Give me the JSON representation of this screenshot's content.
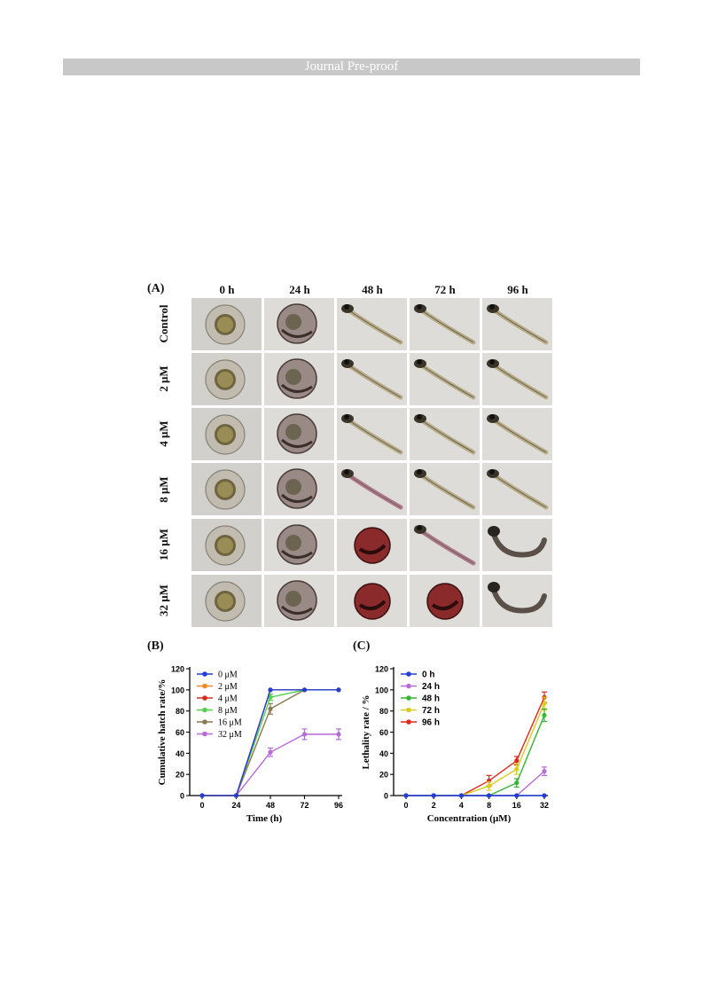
{
  "header": {
    "banner": "Journal Pre-proof"
  },
  "figure": {
    "panel_a": {
      "label": "(A)",
      "columns": [
        "0 h",
        "24 h",
        "48 h",
        "72 h",
        "96 h"
      ],
      "rows": [
        "Control",
        "2 μM",
        "4 μM",
        "8 μM",
        "16 μM",
        "32 μM"
      ]
    },
    "panel_b": {
      "label": "(B)"
    },
    "panel_c": {
      "label": "(C)"
    }
  },
  "chart_data": [
    {
      "type": "line",
      "panel": "B",
      "x": [
        0,
        24,
        48,
        72,
        96
      ],
      "xlabel": "Time (h)",
      "ylabel": "Cumulative hatch rate/%",
      "ylim": [
        0,
        120
      ],
      "yticks": [
        0,
        20,
        40,
        60,
        80,
        100,
        120
      ],
      "legend_position": "top-left",
      "series": [
        {
          "name": "0 μM",
          "color": "#1f3fd6",
          "values": [
            0,
            0,
            100,
            100,
            100
          ],
          "err": [
            0,
            0,
            0,
            0,
            0
          ]
        },
        {
          "name": "2 μM",
          "color": "#f08a24",
          "values": [
            0,
            0,
            100,
            100,
            100
          ],
          "err": [
            0,
            0,
            0,
            0,
            0
          ]
        },
        {
          "name": "4 μM",
          "color": "#d62d20",
          "values": [
            0,
            0,
            100,
            100,
            100
          ],
          "err": [
            0,
            0,
            0,
            0,
            0
          ]
        },
        {
          "name": "8 μM",
          "color": "#4fd14a",
          "values": [
            0,
            0,
            93,
            100,
            100
          ],
          "err": [
            0,
            0,
            3,
            0,
            0
          ]
        },
        {
          "name": "16 μM",
          "color": "#8b7a52",
          "values": [
            0,
            0,
            82,
            100,
            100
          ],
          "err": [
            0,
            0,
            5,
            0,
            0
          ]
        },
        {
          "name": "32 μM",
          "color": "#b86ad8",
          "values": [
            0,
            0,
            41,
            58,
            58
          ],
          "err": [
            0,
            0,
            4,
            5,
            5
          ]
        }
      ]
    },
    {
      "type": "line",
      "panel": "C",
      "x": [
        0,
        2,
        4,
        8,
        16,
        32
      ],
      "xlabel": "Concentration (μM)",
      "ylabel": "Lethality rate / %",
      "ylim": [
        0,
        120
      ],
      "yticks": [
        0,
        20,
        40,
        60,
        80,
        100,
        120
      ],
      "legend_position": "top-left",
      "series": [
        {
          "name": "0 h",
          "color": "#1f3fd6",
          "values": [
            0,
            0,
            0,
            0,
            0,
            0
          ],
          "err": [
            0,
            0,
            0,
            0,
            0,
            0
          ]
        },
        {
          "name": "24 h",
          "color": "#b86ad8",
          "values": [
            0,
            0,
            0,
            0,
            0,
            23
          ],
          "err": [
            0,
            0,
            0,
            0,
            0,
            4
          ]
        },
        {
          "name": "48 h",
          "color": "#36b536",
          "values": [
            0,
            0,
            0,
            0,
            12,
            76
          ],
          "err": [
            0,
            0,
            0,
            0,
            4,
            6
          ]
        },
        {
          "name": "72 h",
          "color": "#d8cc22",
          "values": [
            0,
            0,
            0,
            9,
            25,
            87
          ],
          "err": [
            0,
            0,
            0,
            4,
            5,
            6
          ]
        },
        {
          "name": "96 h",
          "color": "#e0281e",
          "values": [
            0,
            0,
            0,
            14,
            33,
            93
          ],
          "err": [
            0,
            0,
            0,
            5,
            4,
            5
          ]
        }
      ]
    }
  ]
}
